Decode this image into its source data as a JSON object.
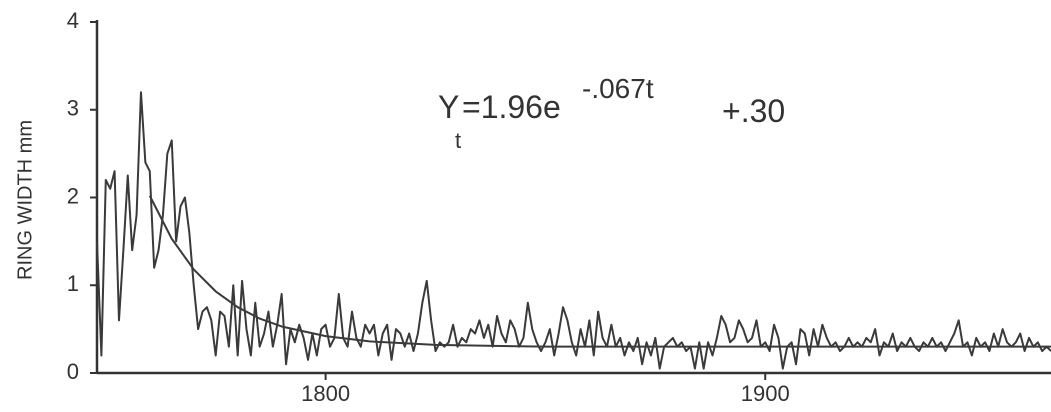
{
  "chart_data": {
    "type": "line",
    "y_label": "RING WIDTH mm",
    "annotation": {
      "y": "Y",
      "subscript": "t",
      "body": "=1.96e",
      "exponent": "-.067t",
      "tail": "+.30"
    },
    "xlim": [
      1748,
      1965
    ],
    "xticks": [
      1800,
      1900
    ],
    "ylim": [
      0,
      4
    ],
    "yticks": [
      0,
      1,
      2,
      3,
      4
    ],
    "grid": false,
    "series": [
      {
        "color": "#3a3a3a",
        "x": [
          1748,
          1749,
          1750,
          1751,
          1752,
          1753,
          1754,
          1755,
          1756,
          1757,
          1758,
          1759,
          1760,
          1761,
          1762,
          1763,
          1764,
          1765,
          1766,
          1767,
          1768,
          1769,
          1770,
          1771,
          1772,
          1773,
          1774,
          1775,
          1776,
          1777,
          1778,
          1779,
          1780,
          1781,
          1782,
          1783,
          1784,
          1785,
          1786,
          1787,
          1788,
          1789,
          1790,
          1791,
          1792,
          1793,
          1794,
          1795,
          1796,
          1797,
          1798,
          1799,
          1800,
          1801,
          1802,
          1803,
          1804,
          1805,
          1806,
          1807,
          1808,
          1809,
          1810,
          1811,
          1812,
          1813,
          1814,
          1815,
          1816,
          1817,
          1818,
          1819,
          1820,
          1821,
          1822,
          1823,
          1824,
          1825,
          1826,
          1827,
          1828,
          1829,
          1830,
          1831,
          1832,
          1833,
          1834,
          1835,
          1836,
          1837,
          1838,
          1839,
          1840,
          1841,
          1842,
          1843,
          1844,
          1845,
          1846,
          1847,
          1848,
          1849,
          1850,
          1851,
          1852,
          1853,
          1854,
          1855,
          1856,
          1857,
          1858,
          1859,
          1860,
          1861,
          1862,
          1863,
          1864,
          1865,
          1866,
          1867,
          1868,
          1869,
          1870,
          1871,
          1872,
          1873,
          1874,
          1875,
          1876,
          1877,
          1878,
          1879,
          1880,
          1881,
          1882,
          1883,
          1884,
          1885,
          1886,
          1887,
          1888,
          1889,
          1890,
          1891,
          1892,
          1893,
          1894,
          1895,
          1896,
          1897,
          1898,
          1899,
          1900,
          1901,
          1902,
          1903,
          1904,
          1905,
          1906,
          1907,
          1908,
          1909,
          1910,
          1911,
          1912,
          1913,
          1914,
          1915,
          1916,
          1917,
          1918,
          1919,
          1920,
          1921,
          1922,
          1923,
          1924,
          1925,
          1926,
          1927,
          1928,
          1929,
          1930,
          1931,
          1932,
          1933,
          1934,
          1935,
          1936,
          1937,
          1938,
          1939,
          1940,
          1941,
          1942,
          1943,
          1944,
          1945,
          1946,
          1947,
          1948,
          1949,
          1950,
          1951,
          1952,
          1953,
          1954,
          1955,
          1956,
          1957,
          1958,
          1959,
          1960,
          1961,
          1962,
          1963,
          1964,
          1965
        ],
        "values": [
          1.5,
          0.2,
          2.2,
          2.1,
          2.3,
          0.6,
          1.4,
          2.25,
          1.4,
          1.8,
          3.2,
          2.4,
          2.3,
          1.2,
          1.4,
          1.8,
          2.5,
          2.65,
          1.5,
          1.9,
          2.0,
          1.6,
          1.0,
          0.5,
          0.7,
          0.75,
          0.6,
          0.2,
          0.7,
          0.65,
          0.3,
          1.0,
          0.2,
          1.05,
          0.5,
          0.2,
          0.8,
          0.3,
          0.45,
          0.7,
          0.3,
          0.55,
          0.9,
          0.1,
          0.5,
          0.35,
          0.55,
          0.4,
          0.15,
          0.45,
          0.2,
          0.5,
          0.55,
          0.3,
          0.4,
          0.9,
          0.4,
          0.3,
          0.7,
          0.4,
          0.3,
          0.55,
          0.45,
          0.55,
          0.2,
          0.45,
          0.55,
          0.15,
          0.5,
          0.45,
          0.3,
          0.45,
          0.25,
          0.45,
          0.8,
          1.05,
          0.6,
          0.25,
          0.35,
          0.3,
          0.35,
          0.55,
          0.3,
          0.4,
          0.35,
          0.5,
          0.45,
          0.6,
          0.4,
          0.55,
          0.3,
          0.65,
          0.45,
          0.35,
          0.6,
          0.5,
          0.3,
          0.4,
          0.8,
          0.5,
          0.35,
          0.25,
          0.35,
          0.5,
          0.2,
          0.45,
          0.75,
          0.6,
          0.35,
          0.2,
          0.5,
          0.3,
          0.6,
          0.2,
          0.7,
          0.4,
          0.3,
          0.55,
          0.3,
          0.4,
          0.2,
          0.35,
          0.25,
          0.4,
          0.1,
          0.35,
          0.2,
          0.4,
          0.05,
          0.3,
          0.35,
          0.4,
          0.3,
          0.35,
          0.25,
          0.3,
          0.05,
          0.35,
          0.05,
          0.35,
          0.2,
          0.4,
          0.65,
          0.55,
          0.35,
          0.4,
          0.6,
          0.5,
          0.35,
          0.4,
          0.6,
          0.3,
          0.35,
          0.25,
          0.55,
          0.4,
          0.05,
          0.3,
          0.35,
          0.1,
          0.5,
          0.45,
          0.2,
          0.5,
          0.3,
          0.55,
          0.4,
          0.3,
          0.35,
          0.25,
          0.3,
          0.4,
          0.3,
          0.35,
          0.3,
          0.4,
          0.35,
          0.5,
          0.2,
          0.35,
          0.3,
          0.45,
          0.25,
          0.35,
          0.3,
          0.4,
          0.3,
          0.25,
          0.35,
          0.3,
          0.4,
          0.3,
          0.35,
          0.25,
          0.35,
          0.45,
          0.6,
          0.3,
          0.35,
          0.2,
          0.4,
          0.3,
          0.35,
          0.25,
          0.45,
          0.3,
          0.5,
          0.35,
          0.3,
          0.35,
          0.45,
          0.25,
          0.4,
          0.3,
          0.35,
          0.25,
          0.3,
          0.25
        ]
      },
      {
        "color": "#3a3a3a",
        "x": [
          1760,
          1765,
          1770,
          1775,
          1780,
          1785,
          1790,
          1800,
          1810,
          1825,
          1850,
          1900,
          1965
        ],
        "values": [
          2.02,
          1.53,
          1.18,
          0.93,
          0.75,
          0.62,
          0.53,
          0.42,
          0.36,
          0.32,
          0.3,
          0.3,
          0.3
        ]
      }
    ]
  }
}
